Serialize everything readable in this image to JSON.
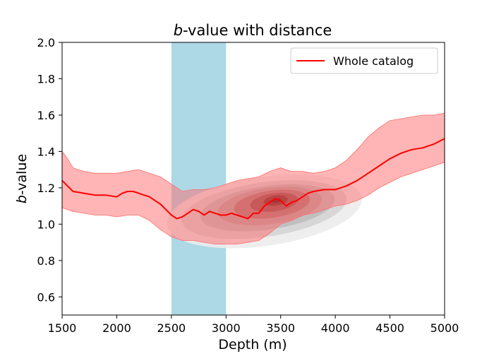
{
  "chart_data": {
    "type": "line",
    "title": "b-value with distance",
    "title_italic_prefix": "b",
    "title_rest": "-value with distance",
    "xlabel": "Depth (m)",
    "ylabel_italic_prefix": "b",
    "ylabel_rest": "-value",
    "xlim": [
      1500,
      5000
    ],
    "ylim": [
      0.5,
      2.0
    ],
    "x_ticks": [
      1500,
      2000,
      2500,
      3000,
      3500,
      4000,
      4500,
      5000
    ],
    "y_ticks": [
      0.6,
      0.8,
      1.0,
      1.2,
      1.4,
      1.6,
      1.8,
      2.0
    ],
    "x_tick_labels": [
      "1500",
      "2000",
      "2500",
      "3000",
      "3500",
      "4000",
      "4500",
      "5000"
    ],
    "y_tick_labels": [
      "0.6",
      "0.8",
      "1.0",
      "1.2",
      "1.4",
      "1.6",
      "1.8",
      "2.0"
    ],
    "grid": false,
    "legend": {
      "position": "top-right",
      "entries": [
        {
          "label": "Whole catalog",
          "color": "#ff0000"
        }
      ]
    },
    "highlight_band": {
      "x": [
        2500,
        3000
      ],
      "color": "#add8e6"
    },
    "series": [
      {
        "name": "Whole catalog",
        "color": "#ff0000",
        "x": [
          1500,
          1550,
          1600,
          1700,
          1800,
          1900,
          2000,
          2050,
          2100,
          2150,
          2200,
          2250,
          2300,
          2350,
          2400,
          2450,
          2500,
          2550,
          2600,
          2650,
          2700,
          2750,
          2800,
          2850,
          2900,
          2950,
          3000,
          3050,
          3100,
          3150,
          3200,
          3250,
          3300,
          3350,
          3400,
          3450,
          3500,
          3550,
          3600,
          3650,
          3700,
          3750,
          3800,
          3900,
          4000,
          4100,
          4200,
          4300,
          4400,
          4500,
          4600,
          4700,
          4800,
          4900,
          5000
        ],
        "y": [
          1.24,
          1.21,
          1.18,
          1.17,
          1.16,
          1.16,
          1.15,
          1.17,
          1.18,
          1.18,
          1.17,
          1.16,
          1.15,
          1.13,
          1.11,
          1.08,
          1.05,
          1.03,
          1.04,
          1.06,
          1.08,
          1.07,
          1.05,
          1.07,
          1.06,
          1.05,
          1.05,
          1.06,
          1.05,
          1.04,
          1.03,
          1.06,
          1.06,
          1.1,
          1.12,
          1.14,
          1.13,
          1.1,
          1.12,
          1.13,
          1.15,
          1.17,
          1.18,
          1.19,
          1.19,
          1.21,
          1.24,
          1.28,
          1.32,
          1.36,
          1.39,
          1.41,
          1.42,
          1.44,
          1.47
        ]
      }
    ],
    "confidence_band": {
      "color": "#ff6b6b",
      "x": [
        1500,
        1550,
        1600,
        1700,
        1800,
        1900,
        2000,
        2100,
        2200,
        2300,
        2400,
        2500,
        2600,
        2700,
        2800,
        2900,
        3000,
        3100,
        3200,
        3300,
        3400,
        3500,
        3600,
        3700,
        3800,
        3900,
        4000,
        4100,
        4200,
        4300,
        4400,
        4500,
        4600,
        4700,
        4800,
        4900,
        5000
      ],
      "upper": [
        1.4,
        1.36,
        1.31,
        1.29,
        1.28,
        1.28,
        1.28,
        1.29,
        1.3,
        1.28,
        1.26,
        1.22,
        1.18,
        1.19,
        1.19,
        1.2,
        1.22,
        1.24,
        1.25,
        1.26,
        1.29,
        1.31,
        1.29,
        1.29,
        1.28,
        1.29,
        1.31,
        1.35,
        1.41,
        1.48,
        1.53,
        1.57,
        1.58,
        1.59,
        1.6,
        1.6,
        1.61
      ],
      "lower": [
        1.09,
        1.08,
        1.07,
        1.06,
        1.05,
        1.05,
        1.04,
        1.05,
        1.05,
        1.02,
        0.97,
        0.93,
        0.91,
        0.91,
        0.9,
        0.89,
        0.89,
        0.89,
        0.9,
        0.91,
        0.95,
        1.0,
        1.02,
        1.05,
        1.06,
        1.08,
        1.1,
        1.11,
        1.13,
        1.16,
        1.2,
        1.23,
        1.26,
        1.28,
        1.3,
        1.32,
        1.34
      ]
    },
    "density_contours": {
      "description_colormap": "greys_to_dark_red",
      "levels": [
        {
          "color": "#ececec",
          "cx": 3350,
          "cy": 1.07,
          "rx": 900,
          "ry": 0.19
        },
        {
          "color": "#d4d4d4",
          "cx": 3350,
          "cy": 1.08,
          "rx": 760,
          "ry": 0.15
        },
        {
          "color": "#bcbcbc",
          "cx": 3380,
          "cy": 1.09,
          "rx": 620,
          "ry": 0.12
        },
        {
          "color": "#b89f9f",
          "cx": 3400,
          "cy": 1.1,
          "rx": 480,
          "ry": 0.1
        },
        {
          "color": "#a86f6f",
          "cx": 3420,
          "cy": 1.11,
          "rx": 350,
          "ry": 0.075
        },
        {
          "color": "#8d4141",
          "cx": 3440,
          "cy": 1.12,
          "rx": 220,
          "ry": 0.05
        },
        {
          "color": "#6b1818",
          "cx": 3455,
          "cy": 1.13,
          "rx": 110,
          "ry": 0.028
        },
        {
          "color": "#400000",
          "cx": 3460,
          "cy": 1.13,
          "rx": 45,
          "ry": 0.013
        }
      ]
    }
  }
}
